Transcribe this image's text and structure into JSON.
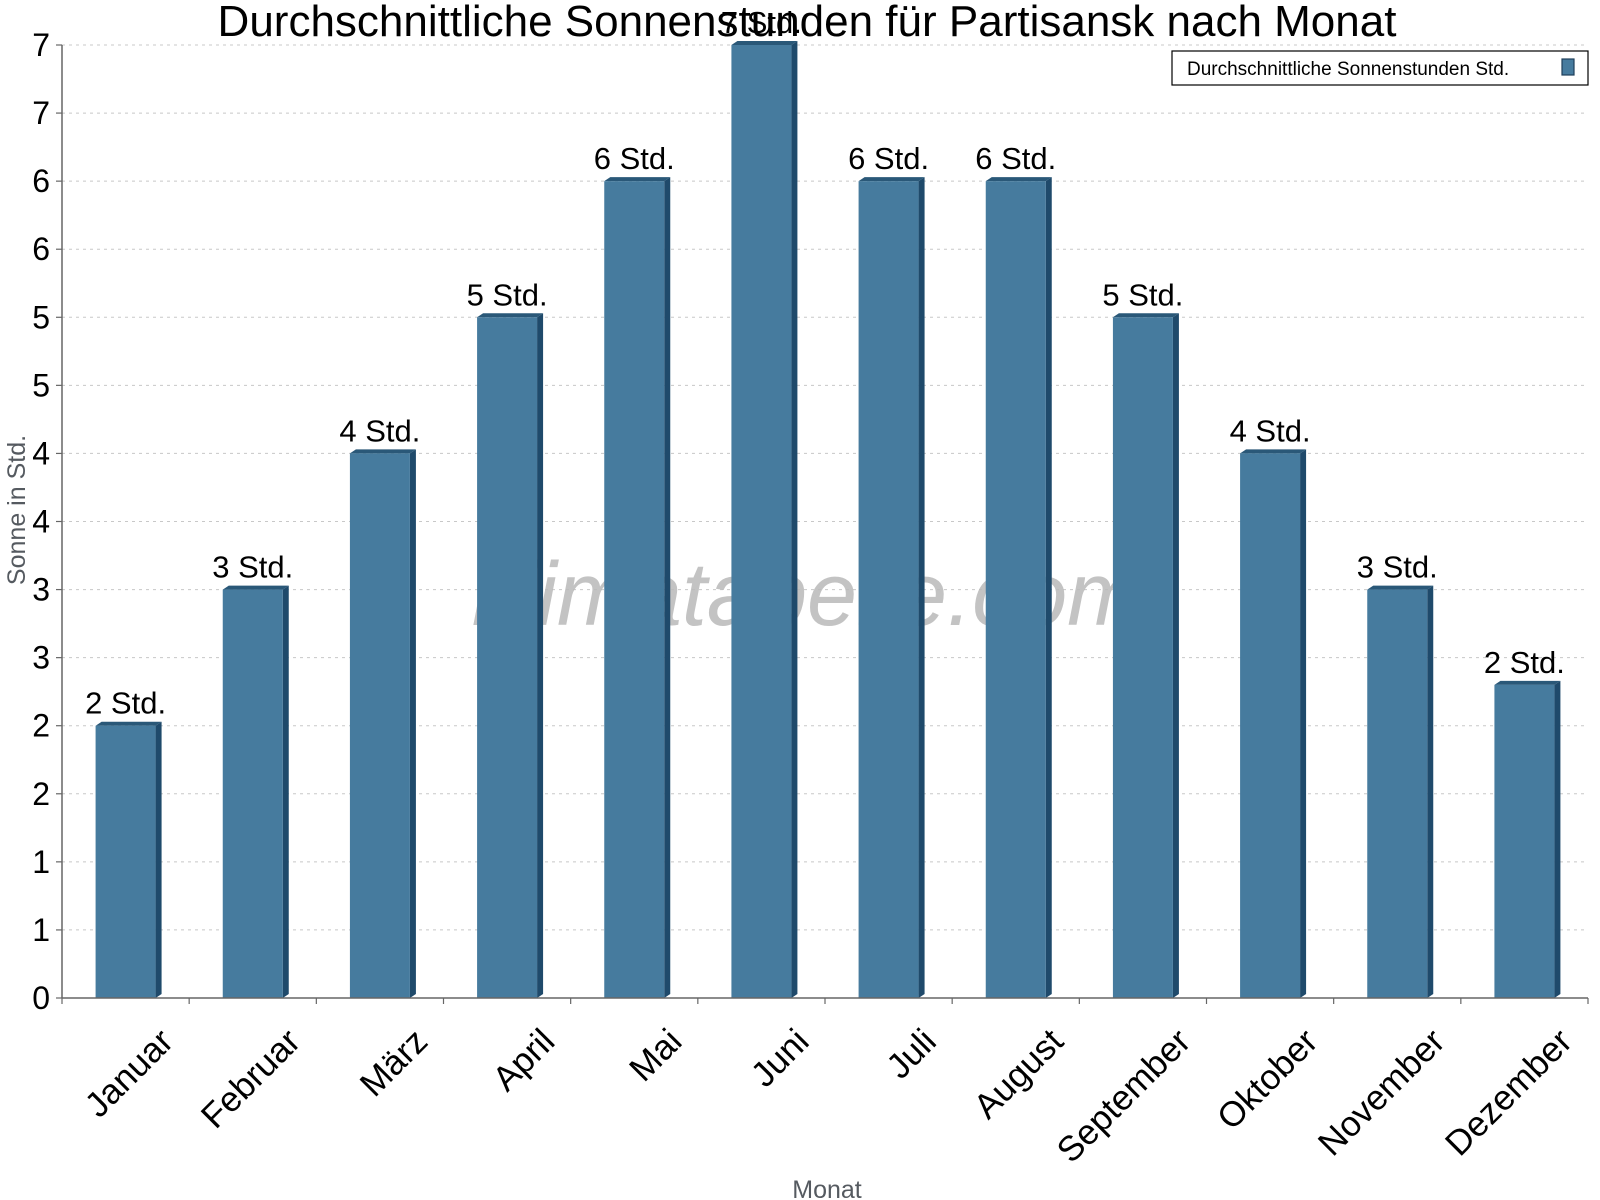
{
  "chart_data": {
    "type": "bar",
    "title": "Durchschnittliche Sonnenstunden für Partisansk nach Monat",
    "xlabel": "Monat",
    "ylabel": "Sonne in Std.",
    "categories": [
      "Januar",
      "Februar",
      "März",
      "April",
      "Mai",
      "Juni",
      "Juli",
      "August",
      "September",
      "Oktober",
      "November",
      "Dezember"
    ],
    "series": [
      {
        "name": "Durchschnittliche Sonnenstunden Std.",
        "values": [
          2.0,
          3.0,
          4.0,
          5.0,
          6.0,
          7.0,
          6.0,
          6.0,
          5.0,
          4.0,
          3.0,
          2.3
        ],
        "labels": [
          "2 Std.",
          "3 Std.",
          "4 Std.",
          "5 Std.",
          "6 Std.",
          "7 Std.",
          "6 Std.",
          "6 Std.",
          "5 Std.",
          "4 Std.",
          "3 Std.",
          "2 Std."
        ]
      }
    ],
    "ylim": [
      0,
      7
    ],
    "ytick_values": [
      0,
      0.5,
      1,
      1.5,
      2,
      2.5,
      3,
      3.5,
      4,
      4.5,
      5,
      5.5,
      6,
      6.5,
      7
    ],
    "ytick_labels": [
      "0",
      "1",
      "1",
      "2",
      "2",
      "3",
      "3",
      "4",
      "4",
      "5",
      "5",
      "6",
      "6",
      "7",
      "7"
    ],
    "grid": true,
    "legend_position": "top-right",
    "colors": {
      "bar": "#467b9e",
      "bar_side": "#1f4a6b",
      "bar_top": "#2a5878"
    }
  },
  "watermark": "klimatabelle.com"
}
